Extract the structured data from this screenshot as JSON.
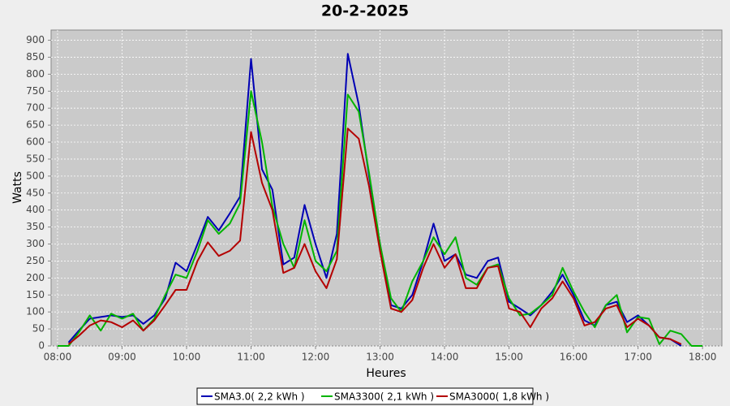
{
  "chart_data": {
    "type": "line",
    "title": "20-2-2025",
    "x_label": "Heures",
    "y_label": "Watts",
    "x": [
      8,
      8.17,
      8.33,
      8.5,
      8.67,
      8.83,
      9,
      9.17,
      9.33,
      9.5,
      9.67,
      9.83,
      10,
      10.17,
      10.33,
      10.5,
      10.67,
      10.83,
      11,
      11.17,
      11.33,
      11.5,
      11.67,
      11.83,
      12,
      12.17,
      12.33,
      12.5,
      12.67,
      12.83,
      13,
      13.17,
      13.33,
      13.5,
      13.67,
      13.83,
      14,
      14.17,
      14.33,
      14.5,
      14.67,
      14.83,
      15,
      15.17,
      15.33,
      15.5,
      15.67,
      15.83,
      16,
      16.17,
      16.33,
      16.5,
      16.67,
      16.83,
      17,
      17.17,
      17.33,
      17.5,
      17.67,
      17.83,
      18
    ],
    "series": [
      {
        "name": "SMA3.0( 2,2 kWh )",
        "color": "#0000b4",
        "values": [
          null,
          10,
          45,
          80,
          85,
          90,
          85,
          90,
          65,
          90,
          140,
          245,
          220,
          300,
          380,
          340,
          390,
          440,
          845,
          520,
          460,
          240,
          260,
          415,
          300,
          200,
          330,
          860,
          710,
          500,
          300,
          120,
          110,
          150,
          250,
          360,
          250,
          270,
          210,
          200,
          250,
          260,
          130,
          110,
          90,
          120,
          160,
          210,
          150,
          75,
          60,
          120,
          130,
          70,
          90,
          60,
          25,
          20,
          0,
          null,
          null
        ]
      },
      {
        "name": "SMA3300( 2,1 kWh )",
        "color": "#00b400",
        "values": [
          0,
          0,
          40,
          90,
          45,
          95,
          80,
          95,
          45,
          80,
          150,
          210,
          200,
          280,
          370,
          330,
          360,
          420,
          750,
          600,
          410,
          300,
          230,
          370,
          250,
          220,
          280,
          740,
          690,
          510,
          300,
          140,
          100,
          190,
          250,
          320,
          270,
          320,
          200,
          180,
          230,
          240,
          140,
          90,
          95,
          120,
          150,
          230,
          160,
          100,
          55,
          120,
          150,
          40,
          85,
          80,
          5,
          45,
          35,
          0,
          0
        ]
      },
      {
        "name": "SMA3000( 1,8 kWh )",
        "color": "#b40000",
        "values": [
          null,
          5,
          30,
          60,
          75,
          70,
          55,
          75,
          45,
          75,
          120,
          165,
          165,
          250,
          305,
          265,
          280,
          310,
          630,
          480,
          400,
          215,
          230,
          300,
          220,
          170,
          255,
          640,
          610,
          470,
          280,
          110,
          100,
          135,
          230,
          300,
          230,
          270,
          170,
          170,
          230,
          235,
          110,
          100,
          55,
          110,
          140,
          190,
          140,
          60,
          70,
          110,
          120,
          55,
          80,
          60,
          25,
          20,
          5,
          null,
          null
        ]
      }
    ],
    "xlim": [
      7.9,
      18.3
    ],
    "ylim": [
      0,
      930
    ],
    "xticks": [
      {
        "value": 8,
        "label": "08:00"
      },
      {
        "value": 9,
        "label": "09:00"
      },
      {
        "value": 10,
        "label": "10:00"
      },
      {
        "value": 11,
        "label": "11:00"
      },
      {
        "value": 12,
        "label": "12:00"
      },
      {
        "value": 13,
        "label": "13:00"
      },
      {
        "value": 14,
        "label": "14:00"
      },
      {
        "value": 15,
        "label": "15:00"
      },
      {
        "value": 16,
        "label": "16:00"
      },
      {
        "value": 17,
        "label": "17:00"
      },
      {
        "value": 18,
        "label": "18:00"
      }
    ],
    "yticks": [
      0,
      50,
      100,
      150,
      200,
      250,
      300,
      350,
      400,
      450,
      500,
      550,
      600,
      650,
      700,
      750,
      800,
      850,
      900
    ],
    "grid": true,
    "legend": "bottom"
  }
}
